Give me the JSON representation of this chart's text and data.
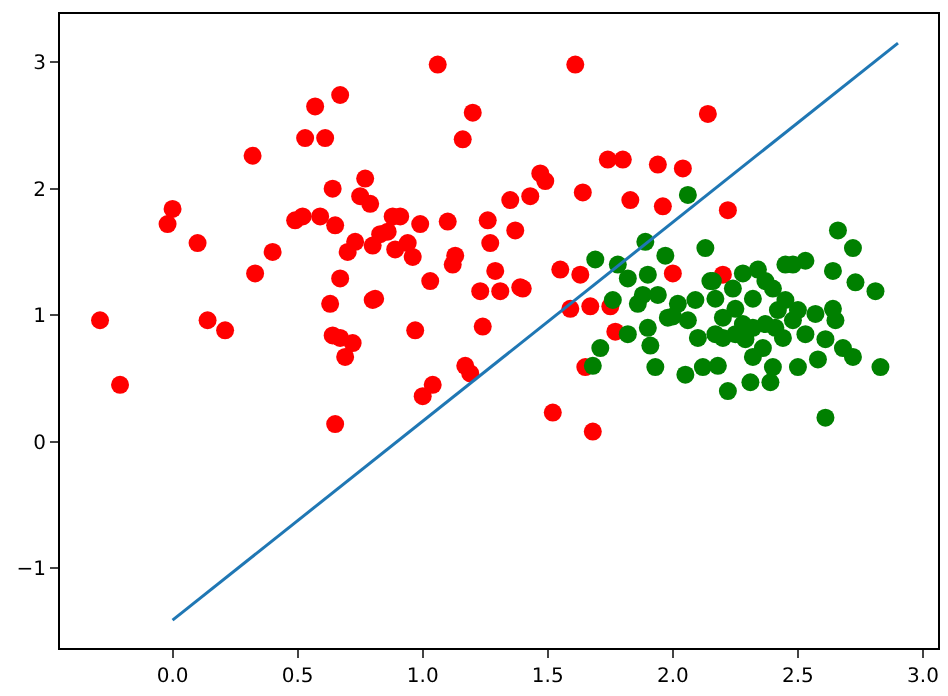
{
  "chart_data": {
    "type": "scatter",
    "marker": "circle",
    "xlim": [
      -0.45,
      3.06
    ],
    "ylim": [
      -1.63,
      3.38
    ],
    "xticks": [
      {
        "value": 0,
        "label": "0.0"
      },
      {
        "value": 0.5,
        "label": "0.5"
      },
      {
        "value": 1,
        "label": "1.0"
      },
      {
        "value": 1.5,
        "label": "1.5"
      },
      {
        "value": 2,
        "label": "2.0"
      },
      {
        "value": 2.5,
        "label": "2.5"
      },
      {
        "value": 3,
        "label": "3.0"
      }
    ],
    "yticks": [
      {
        "value": -1,
        "label": "−1"
      },
      0,
      1,
      2,
      3
    ],
    "series": [
      {
        "color": "#ff0000",
        "x": [
          -0.29,
          -0.21,
          0.0,
          -0.02,
          0.1,
          0.14,
          0.21,
          0.32,
          0.33,
          0.4,
          0.49,
          0.52,
          0.53,
          0.59,
          0.61,
          0.57,
          0.67,
          0.7,
          0.64,
          0.65,
          0.67,
          0.63,
          0.64,
          0.67,
          0.69,
          0.65,
          0.72,
          0.73,
          0.75,
          0.77,
          0.79,
          0.8,
          0.8,
          0.81,
          0.83,
          0.86,
          0.88,
          0.89,
          0.91,
          0.94,
          0.96,
          0.97,
          0.99,
          1.0,
          1.03,
          1.04,
          1.06,
          1.1,
          1.12,
          1.13,
          1.16,
          1.2,
          1.17,
          1.19,
          1.23,
          1.24,
          1.26,
          1.27,
          1.29,
          1.31,
          1.35,
          1.37,
          1.39,
          1.4,
          1.43,
          1.47,
          1.49,
          1.55,
          1.61,
          1.64,
          1.74,
          1.8,
          1.77,
          1.83,
          1.94,
          1.96,
          2.0,
          2.14,
          2.22,
          2.04,
          2.2,
          1.52,
          1.68,
          1.65,
          1.67,
          1.75,
          1.59,
          1.63
        ],
        "values": [
          0.96,
          0.45,
          1.84,
          1.72,
          1.57,
          0.96,
          0.88,
          2.26,
          1.33,
          1.5,
          1.75,
          1.78,
          2.4,
          1.78,
          2.4,
          2.65,
          2.74,
          1.5,
          2.0,
          1.71,
          1.29,
          1.09,
          0.84,
          0.82,
          0.67,
          0.14,
          0.78,
          1.58,
          1.94,
          2.08,
          1.88,
          1.12,
          1.55,
          1.13,
          1.64,
          1.66,
          1.78,
          1.52,
          1.78,
          1.57,
          1.46,
          0.88,
          1.72,
          0.36,
          1.27,
          0.45,
          2.98,
          1.74,
          1.4,
          1.47,
          2.39,
          2.6,
          0.6,
          0.54,
          1.19,
          0.91,
          1.75,
          1.57,
          1.35,
          1.19,
          1.91,
          1.67,
          1.22,
          1.21,
          1.94,
          2.12,
          2.06,
          1.36,
          2.98,
          1.97,
          2.23,
          2.23,
          0.87,
          1.91,
          2.19,
          1.86,
          1.33,
          2.59,
          1.83,
          2.16,
          1.32,
          0.23,
          0.08,
          0.59,
          1.07,
          1.07,
          1.05,
          1.32
        ]
      },
      {
        "color": "#008000",
        "x": [
          1.69,
          1.89,
          2.13,
          1.78,
          1.82,
          1.76,
          1.88,
          1.9,
          1.97,
          1.94,
          1.98,
          1.86,
          1.82,
          1.9,
          1.91,
          1.93,
          1.71,
          1.68,
          2.05,
          2.06,
          2.09,
          2.15,
          2.17,
          2.12,
          2.18,
          2.22,
          2.1,
          2.17,
          2.2,
          2.24,
          2.25,
          2.28,
          2.32,
          2.34,
          2.37,
          2.4,
          2.32,
          2.25,
          2.29,
          2.32,
          2.31,
          2.36,
          2.39,
          2.4,
          2.37,
          2.42,
          2.45,
          2.48,
          2.53,
          2.44,
          2.48,
          2.5,
          2.53,
          2.57,
          2.58,
          2.61,
          2.64,
          2.64,
          2.65,
          2.66,
          2.72,
          2.73,
          2.68,
          2.72,
          2.81,
          2.83,
          2.61,
          2.5,
          2.41,
          2.2,
          2.28,
          2.02,
          2.0,
          2.45,
          2.16,
          2.06
        ],
        "values": [
          1.44,
          1.58,
          1.53,
          1.4,
          1.29,
          1.12,
          1.16,
          1.32,
          1.47,
          1.16,
          0.98,
          1.09,
          0.85,
          0.9,
          0.76,
          0.59,
          0.74,
          0.6,
          0.53,
          0.96,
          1.12,
          1.27,
          1.13,
          0.59,
          0.6,
          0.4,
          0.82,
          0.85,
          0.98,
          1.21,
          1.05,
          1.33,
          1.13,
          1.36,
          1.27,
          1.21,
          0.9,
          0.85,
          0.81,
          0.67,
          0.47,
          0.74,
          0.47,
          0.59,
          0.93,
          1.04,
          1.12,
          1.4,
          1.43,
          0.82,
          0.96,
          0.59,
          0.85,
          1.01,
          0.65,
          0.81,
          1.05,
          1.35,
          0.96,
          1.67,
          1.53,
          1.26,
          0.74,
          0.67,
          1.19,
          0.59,
          0.19,
          1.04,
          0.9,
          0.82,
          0.93,
          1.09,
          0.99,
          1.4,
          1.27,
          1.95
        ]
      },
      {
        "type": "line",
        "color": "#1f77b4",
        "marker": "none",
        "line_style": "solid",
        "x": [
          0,
          2.9
        ],
        "values": [
          -1.41,
          3.15
        ]
      }
    ]
  }
}
